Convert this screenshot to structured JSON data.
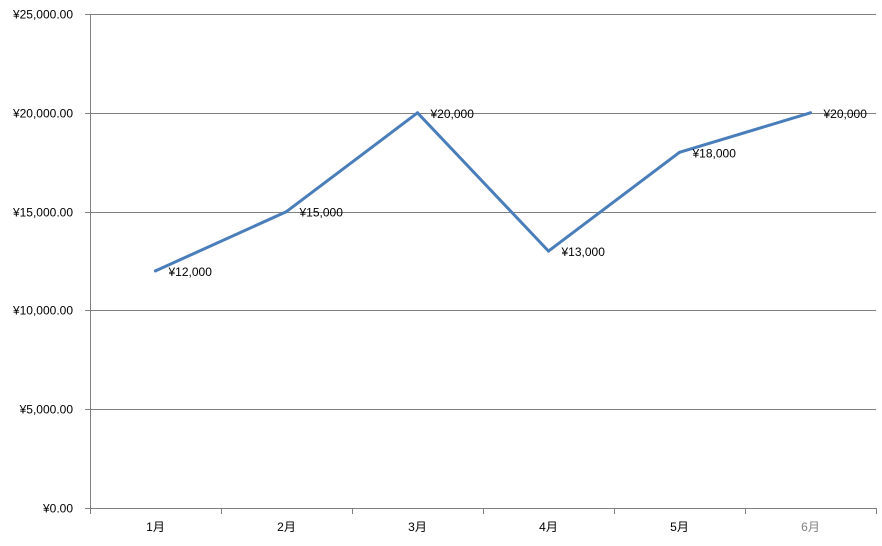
{
  "chart_data": {
    "type": "line",
    "title": "",
    "xlabel": "",
    "ylabel": "",
    "categories": [
      "1月",
      "2月",
      "3月",
      "4月",
      "5月",
      "6月"
    ],
    "series": [
      {
        "values": [
          12000,
          15000,
          20000,
          13000,
          18000,
          20000
        ],
        "data_labels": [
          "¥12,000",
          "¥15,000",
          "¥20,000",
          "¥13,000",
          "¥18,000",
          "¥20,000"
        ],
        "color": "#4a7ebb"
      }
    ],
    "ylim": [
      0,
      25000
    ],
    "y_ticks": [
      0,
      5000,
      10000,
      15000,
      20000,
      25000
    ],
    "y_tick_labels": [
      "¥0.00",
      "¥5,000.00",
      "¥10,000.00",
      "¥15,000.00",
      "¥20,000.00",
      "¥25,000.00"
    ],
    "grid": true,
    "legend": "none",
    "colors": {
      "gridline": "#808080",
      "axis": "#808080",
      "tick_text": "#000000",
      "last_category_text": "#808080"
    }
  }
}
